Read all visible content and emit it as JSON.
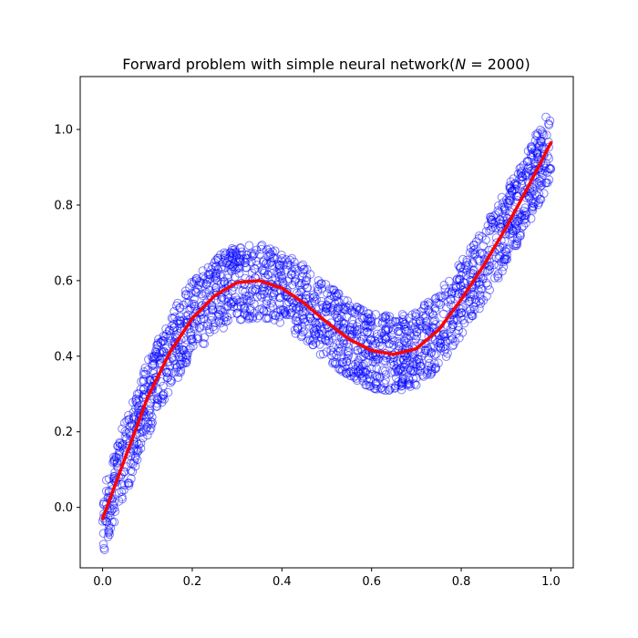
{
  "chart_data": {
    "type": "scatter",
    "title": "Forward problem with simple neural network(N = 2000)",
    "xlabel": "",
    "ylabel": "",
    "xlim": [
      -0.05,
      1.05
    ],
    "ylim": [
      -0.16,
      1.14
    ],
    "xticks": [
      0.0,
      0.2,
      0.4,
      0.6,
      0.8,
      1.0
    ],
    "xtick_labels": [
      "0.0",
      "0.2",
      "0.4",
      "0.6",
      "0.8",
      "1.0"
    ],
    "yticks": [
      0.0,
      0.2,
      0.4,
      0.6,
      0.8,
      1.0
    ],
    "ytick_labels": [
      "0.0",
      "0.2",
      "0.4",
      "0.6",
      "0.8",
      "1.0"
    ],
    "grid": false,
    "legend": "none",
    "series": [
      {
        "kind": "scatter",
        "marker": "open-circle",
        "color": "#0000ff",
        "alpha": 0.5,
        "count": 2000,
        "noise_band": 0.1,
        "trend": "centered on the fitted curve, spread about ±0.1"
      },
      {
        "kind": "line",
        "color": "#ff0000",
        "x": [
          0.0,
          0.05,
          0.1,
          0.15,
          0.2,
          0.25,
          0.3,
          0.35,
          0.4,
          0.45,
          0.5,
          0.55,
          0.6,
          0.65,
          0.7,
          0.75,
          0.8,
          0.85,
          0.9,
          0.95,
          1.0
        ],
        "y": [
          -0.03,
          0.13,
          0.29,
          0.41,
          0.5,
          0.56,
          0.595,
          0.6,
          0.58,
          0.54,
          0.49,
          0.445,
          0.415,
          0.405,
          0.42,
          0.47,
          0.55,
          0.64,
          0.74,
          0.85,
          0.965
        ]
      }
    ]
  }
}
